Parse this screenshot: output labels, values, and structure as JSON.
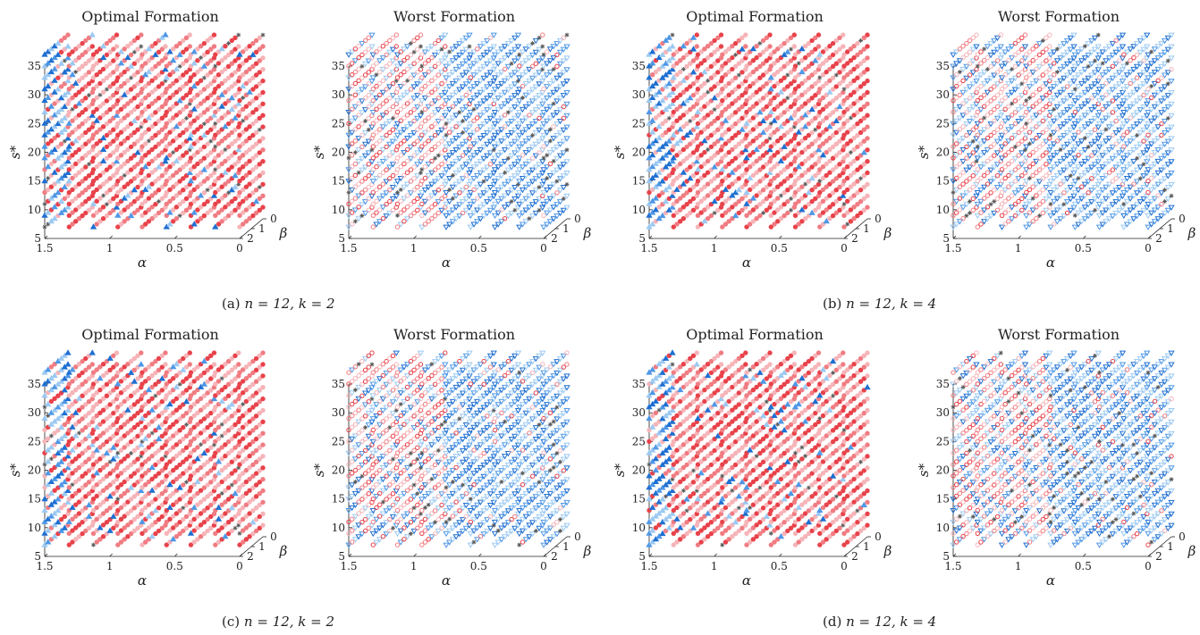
{
  "captions": [
    {
      "label": "(a)",
      "math": "n = 12, k = 2"
    },
    {
      "label": "(b)",
      "math": "n = 12, k = 4"
    },
    {
      "label": "(c)",
      "math": "n = 12, k = 2"
    },
    {
      "label": "(d)",
      "math": "n = 12, k = 4"
    }
  ],
  "axis_text": {
    "alpha": "α",
    "beta": "β",
    "s_star": "s*"
  },
  "chart_data": [
    {
      "type": "scatter",
      "panel": "a-optimal",
      "title": "Optimal Formation",
      "xlabel": "α",
      "ylabel": "s*",
      "zlabel": "β",
      "alpha_ticks": [
        "1.5",
        "1",
        "0.5",
        "0"
      ],
      "s_ticks": [
        "5",
        "10",
        "15",
        "20",
        "25",
        "30",
        "35"
      ],
      "beta_ticks": [
        "0",
        "1",
        "2"
      ],
      "alpha_range": [
        0,
        1.5
      ],
      "s_range": [
        5,
        35
      ],
      "beta_range": [
        0,
        2
      ],
      "markers": [
        "circle-filled",
        "triangle-filled",
        "star"
      ]
    },
    {
      "type": "scatter",
      "panel": "a-worst",
      "title": "Worst Formation",
      "xlabel": "α",
      "ylabel": "s*",
      "zlabel": "β",
      "alpha_ticks": [
        "1.5",
        "1",
        "0.5",
        "0"
      ],
      "s_ticks": [
        "5",
        "10",
        "15",
        "20",
        "25",
        "30",
        "35"
      ],
      "beta_ticks": [
        "0",
        "1",
        "2"
      ],
      "alpha_range": [
        0,
        1.5
      ],
      "s_range": [
        5,
        35
      ],
      "beta_range": [
        0,
        2
      ],
      "markers": [
        "circle-open",
        "triangle-open",
        "star"
      ]
    },
    {
      "type": "scatter",
      "panel": "b-optimal",
      "title": "Optimal Formation",
      "xlabel": "α",
      "ylabel": "s*",
      "zlabel": "β",
      "alpha_ticks": [
        "1.5",
        "1",
        "0.5",
        "0"
      ],
      "s_ticks": [
        "5",
        "10",
        "15",
        "20",
        "25",
        "30",
        "35"
      ],
      "beta_ticks": [
        "0",
        "1",
        "2"
      ],
      "alpha_range": [
        0,
        1.5
      ],
      "s_range": [
        5,
        35
      ],
      "beta_range": [
        0,
        2
      ],
      "markers": [
        "circle-filled",
        "triangle-filled",
        "star"
      ]
    },
    {
      "type": "scatter",
      "panel": "b-worst",
      "title": "Worst Formation",
      "xlabel": "α",
      "ylabel": "s*",
      "zlabel": "β",
      "alpha_ticks": [
        "1.5",
        "1",
        "0.5",
        "0"
      ],
      "s_ticks": [
        "5",
        "10",
        "15",
        "20",
        "25",
        "30",
        "35"
      ],
      "beta_ticks": [
        "0",
        "1",
        "2"
      ],
      "alpha_range": [
        0,
        1.5
      ],
      "s_range": [
        5,
        35
      ],
      "beta_range": [
        0,
        2
      ],
      "markers": [
        "circle-open",
        "triangle-open",
        "star"
      ]
    },
    {
      "type": "scatter",
      "panel": "c-optimal",
      "title": "Optimal Formation",
      "xlabel": "α",
      "ylabel": "s*",
      "zlabel": "β",
      "alpha_ticks": [
        "1.5",
        "1",
        "0.5",
        "0"
      ],
      "s_ticks": [
        "5",
        "10",
        "15",
        "20",
        "25",
        "30",
        "35"
      ],
      "beta_ticks": [
        "0",
        "1",
        "2"
      ],
      "alpha_range": [
        0,
        1.5
      ],
      "s_range": [
        5,
        35
      ],
      "beta_range": [
        0,
        2
      ],
      "markers": [
        "circle-filled",
        "triangle-filled",
        "star"
      ]
    },
    {
      "type": "scatter",
      "panel": "c-worst",
      "title": "Worst Formation",
      "xlabel": "α",
      "ylabel": "s*",
      "zlabel": "β",
      "alpha_ticks": [
        "1.5",
        "1",
        "0.5",
        "0"
      ],
      "s_ticks": [
        "5",
        "10",
        "15",
        "20",
        "25",
        "30",
        "35"
      ],
      "beta_ticks": [
        "0",
        "1",
        "2"
      ],
      "alpha_range": [
        0,
        1.5
      ],
      "s_range": [
        5,
        35
      ],
      "beta_range": [
        0,
        2
      ],
      "markers": [
        "circle-open",
        "triangle-open",
        "star"
      ]
    },
    {
      "type": "scatter",
      "panel": "d-optimal",
      "title": "Optimal Formation",
      "xlabel": "α",
      "ylabel": "s*",
      "zlabel": "β",
      "alpha_ticks": [
        "1.5",
        "1",
        "0.5",
        "0"
      ],
      "s_ticks": [
        "5",
        "10",
        "15",
        "20",
        "25",
        "30",
        "35"
      ],
      "beta_ticks": [
        "0",
        "1",
        "2"
      ],
      "alpha_range": [
        0,
        1.5
      ],
      "s_range": [
        5,
        35
      ],
      "beta_range": [
        0,
        2
      ],
      "markers": [
        "circle-filled",
        "triangle-filled",
        "star"
      ]
    },
    {
      "type": "scatter",
      "panel": "d-worst",
      "title": "Worst Formation",
      "xlabel": "α",
      "ylabel": "s*",
      "zlabel": "β",
      "alpha_ticks": [
        "1.5",
        "1",
        "0.5",
        "0"
      ],
      "s_ticks": [
        "5",
        "10",
        "15",
        "20",
        "25",
        "30",
        "35"
      ],
      "beta_ticks": [
        "0",
        "1",
        "2"
      ],
      "alpha_range": [
        0,
        1.5
      ],
      "s_range": [
        5,
        35
      ],
      "beta_range": [
        0,
        2
      ],
      "markers": [
        "circle-open",
        "triangle-open",
        "star"
      ]
    }
  ],
  "colors": {
    "red_dark": "#e8424a",
    "red_mid": "#f07c82",
    "red_light": "#f6b4b8",
    "blue_dark": "#1f6fd1",
    "blue_mid": "#4f97e6",
    "blue_light": "#9cc9f2",
    "star": "#555555",
    "axis": "#222222"
  }
}
